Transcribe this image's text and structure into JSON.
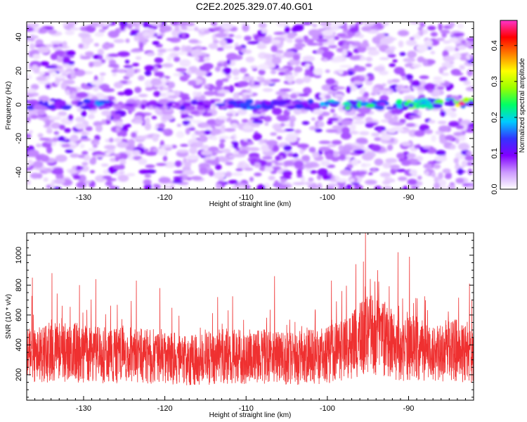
{
  "title": "C2E2.2025.329.07.40.G01",
  "colors": {
    "snr_line": "#ef3030"
  },
  "chart_data": [
    {
      "type": "heatmap",
      "xlabel": "Height of straight line (km)",
      "ylabel": "Frequency (Hz)",
      "xlim": [
        -137,
        -82
      ],
      "ylim": [
        -50,
        49
      ],
      "xticks": [
        -130,
        -120,
        -110,
        -100,
        -90
      ],
      "yticks": [
        -40,
        -20,
        0,
        20,
        40
      ],
      "colorbar": {
        "label": "Normalized spectral amplitude",
        "range": [
          0.0,
          0.47
        ],
        "ticks": [
          "0.0",
          "0.1",
          "0.2",
          "0.3",
          "0.4"
        ],
        "colormap": [
          "#ffffff",
          "#cc99ff",
          "#8000ff",
          "#3333ff",
          "#00ccff",
          "#00ff66",
          "#99ff00",
          "#ffff00",
          "#ff8000",
          "#ff0000",
          "#ff33cc"
        ]
      },
      "ridge": {
        "frequency_hz": 0,
        "height_km": [
          -137,
          -133,
          -130,
          -128,
          -125,
          -121,
          -118,
          -115,
          -112,
          -110,
          -107,
          -104,
          -101,
          -98,
          -95,
          -92,
          -90,
          -88,
          -86,
          -84,
          -82
        ],
        "amplitude": [
          0.12,
          0.15,
          0.12,
          0.16,
          0.08,
          0.1,
          0.11,
          0.14,
          0.15,
          0.16,
          0.14,
          0.13,
          0.17,
          0.22,
          0.25,
          0.18,
          0.26,
          0.24,
          0.27,
          0.34,
          0.3
        ]
      }
    },
    {
      "type": "line",
      "xlabel": "Height of straight line (km)",
      "ylabel": "SNR (10 * v/v)",
      "xlim": [
        -137,
        -82
      ],
      "ylim": [
        30,
        1150
      ],
      "xticks": [
        -130,
        -120,
        -110,
        -100,
        -90
      ],
      "yticks": [
        200,
        400,
        600,
        800,
        1000
      ],
      "series": [
        {
          "x_range": [
            -137,
            -82
          ],
          "mean_envelope": {
            "height_km": [
              -137,
              -133,
              -128,
              -124,
              -120,
              -116,
              -112,
              -108,
              -104,
              -100,
              -97,
              -95,
              -93,
              -91,
              -89,
              -87,
              -85,
              -82
            ],
            "snr": [
              330,
              360,
              330,
              340,
              310,
              300,
              330,
              320,
              310,
              330,
              390,
              480,
              440,
              370,
              380,
              330,
              370,
              340
            ]
          },
          "peaks": [
            {
              "height_km": -136.3,
              "snr": 850
            },
            {
              "height_km": -133.9,
              "snr": 880
            },
            {
              "height_km": -130.5,
              "snr": 800
            },
            {
              "height_km": -128.5,
              "snr": 840
            },
            {
              "height_km": -123.5,
              "snr": 830
            },
            {
              "height_km": -120.6,
              "snr": 780
            },
            {
              "height_km": -113.5,
              "snr": 720
            },
            {
              "height_km": -106.5,
              "snr": 860
            },
            {
              "height_km": -99.5,
              "snr": 830
            },
            {
              "height_km": -96.5,
              "snr": 940
            },
            {
              "height_km": -95.3,
              "snr": 1150
            },
            {
              "height_km": -93.8,
              "snr": 900
            },
            {
              "height_km": -91.3,
              "snr": 1020
            },
            {
              "height_km": -89.9,
              "snr": 990
            },
            {
              "height_km": -82.5,
              "snr": 810
            }
          ]
        }
      ]
    }
  ]
}
